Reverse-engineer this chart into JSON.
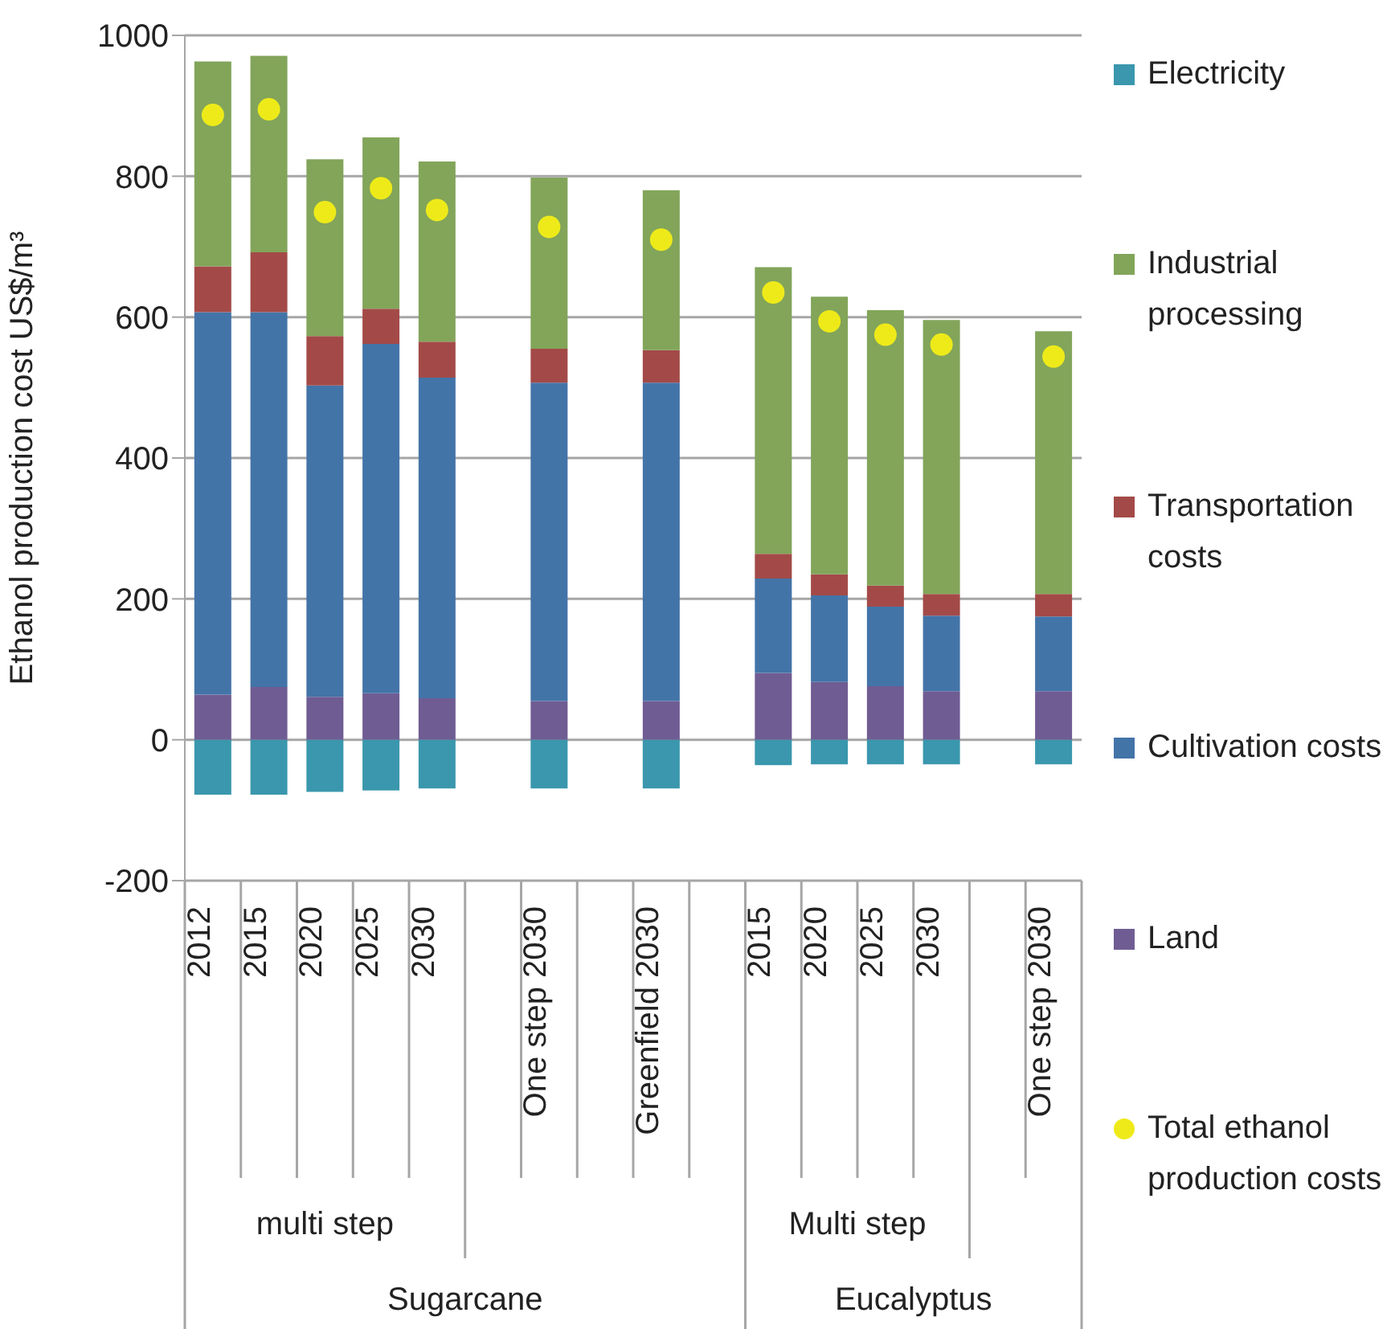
{
  "chart_data": {
    "type": "bar",
    "stacked": true,
    "ylabel": "Ethanol production cost US$/m³",
    "categories": [
      "2012",
      "2015",
      "2020",
      "2025",
      "2030",
      null,
      "One step 2030",
      null,
      "Greenfield 2030",
      null,
      "2015",
      "2020",
      "2025",
      "2030",
      null,
      "One step 2030"
    ],
    "series": [
      {
        "name": "Land",
        "color": "#6f5c93",
        "values": [
          64,
          75,
          61,
          66,
          59,
          null,
          55,
          null,
          55,
          null,
          95,
          82,
          76,
          69,
          null,
          69
        ]
      },
      {
        "name": "Cultivation costs",
        "color": "#4374a8",
        "values": [
          543,
          532,
          442,
          496,
          455,
          null,
          452,
          null,
          452,
          null,
          134,
          123,
          113,
          107,
          null,
          106
        ]
      },
      {
        "name": "Transportation costs",
        "color": "#a34a48",
        "values": [
          65,
          85,
          70,
          50,
          51,
          null,
          48,
          null,
          46,
          null,
          35,
          30,
          30,
          31,
          null,
          32
        ]
      },
      {
        "name": "Industrial processing",
        "color": "#82a55a",
        "values": [
          291,
          279,
          251,
          243,
          256,
          null,
          243,
          null,
          227,
          null,
          407,
          394,
          391,
          389,
          null,
          373
        ]
      },
      {
        "name": "Electricity",
        "color": "#3a97ad",
        "values": [
          -78,
          -78,
          -74,
          -72,
          -69,
          null,
          -69,
          null,
          -69,
          null,
          -36,
          -35,
          -35,
          -35,
          null,
          -35
        ]
      },
      {
        "name": "Total ethanol production costs",
        "type": "scatter",
        "marker": "circle",
        "color": "#eeea1a",
        "values": [
          887,
          895,
          749,
          783,
          752,
          null,
          728,
          null,
          710,
          null,
          635,
          594,
          575,
          561,
          null,
          544
        ]
      }
    ],
    "ylim": [
      -200,
      1000
    ],
    "yticks": [
      -200,
      0,
      200,
      400,
      600,
      800,
      1000
    ],
    "grid": "y",
    "legend": "right",
    "annotations": [
      "multi step",
      "Multi step",
      "Sugarcane",
      "Eucalyptus"
    ]
  }
}
